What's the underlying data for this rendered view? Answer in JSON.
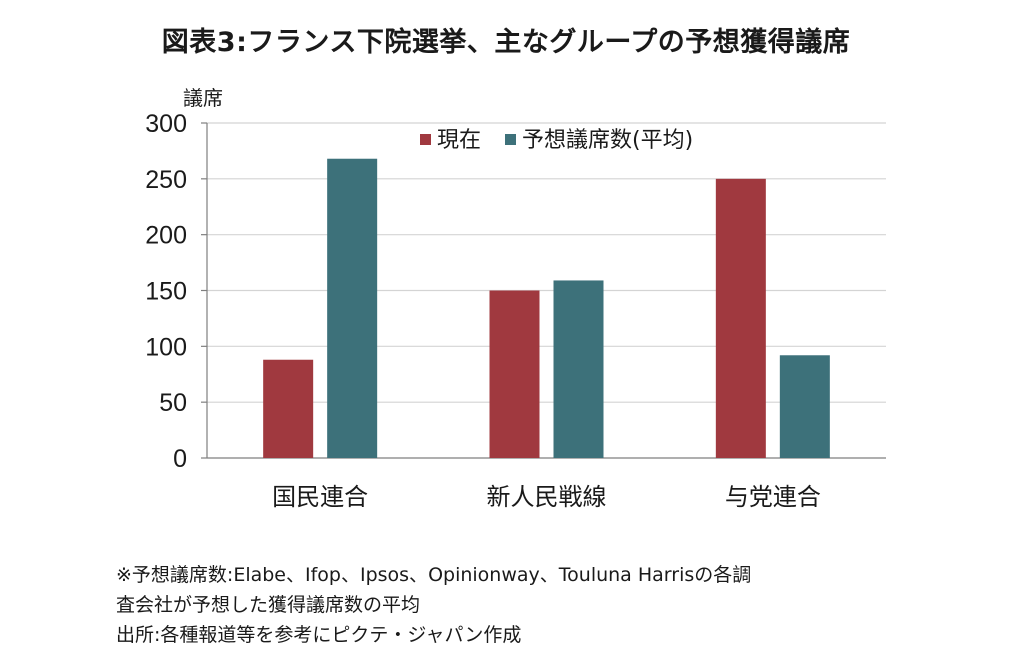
{
  "title": "図表3:フランス下院選挙、主なグループの予想獲得議席",
  "chart_data": {
    "type": "bar",
    "title": "図表3:フランス下院選挙、主なグループの予想獲得議席",
    "ylabel": "議席",
    "xlabel": "",
    "ylim": [
      0,
      300
    ],
    "yticks": [
      0,
      50,
      100,
      150,
      200,
      250,
      300
    ],
    "grid": true,
    "legend_position": "top-right",
    "categories": [
      "国民連合",
      "新人民戦線",
      "与党連合"
    ],
    "series": [
      {
        "name": "現在",
        "color": "#a0393f",
        "values": [
          88,
          150,
          250
        ]
      },
      {
        "name": "予想議席数(平均)",
        "color": "#3d717a",
        "values": [
          268,
          159,
          92
        ]
      }
    ]
  },
  "notes": [
    "※予想議席数:Elabe、Ifop、Ipsos、Opinionway、Touluna Harrisの各調",
    "査会社が予想した獲得議席数の平均",
    "出所:各種報道等を参考にピクテ・ジャパン作成"
  ]
}
